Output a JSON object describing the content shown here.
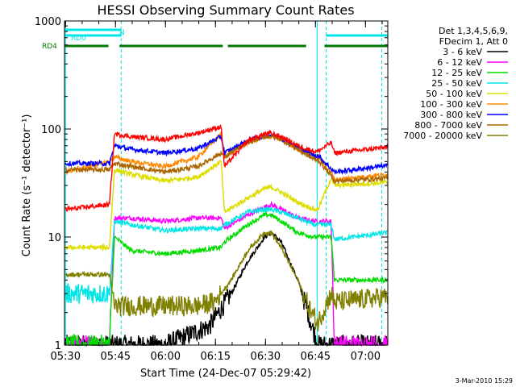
{
  "chart_data": {
    "type": "line",
    "title": "HESSI Observing Summary Count Rates",
    "xlabel": "Start Time (24-Dec-07 05:29:42)",
    "ylabel": "Count Rate (s⁻¹ detector⁻¹)",
    "x_unit": "minutes after 05:29:42",
    "xlim": [
      0,
      97
    ],
    "ylim": [
      1,
      1000
    ],
    "yscale": "log",
    "x_ticks": [
      {
        "t": 0.3,
        "label": "05:30"
      },
      {
        "t": 15.3,
        "label": "05:45"
      },
      {
        "t": 30.3,
        "label": "06:00"
      },
      {
        "t": 45.3,
        "label": "06:15"
      },
      {
        "t": 60.3,
        "label": "06:30"
      },
      {
        "t": 75.3,
        "label": "06:45"
      },
      {
        "t": 90.3,
        "label": "07:00"
      }
    ],
    "y_ticks": [
      {
        "v": 1,
        "label": "1"
      },
      {
        "v": 10,
        "label": "10"
      },
      {
        "v": 100,
        "label": "100"
      },
      {
        "v": 1000,
        "label": "1000"
      }
    ],
    "legend": {
      "position": "right",
      "header": [
        "Det 1,3,4,5,6,9,",
        "FDecim 1, Att 0"
      ]
    },
    "timestamp": "3-Mar-2010 15:29",
    "flags": [
      {
        "name": "N",
        "color": "#00e5e5",
        "segments": [
          [
            0,
            17
          ]
        ]
      },
      {
        "name": "RD0",
        "color": "#00e5e5",
        "segments": [
          [
            0,
            17
          ],
          [
            78.5,
            97
          ]
        ]
      },
      {
        "name": "RD4",
        "color": "#007700",
        "segments": [
          [
            0,
            13.2
          ],
          [
            16.5,
            47.5
          ],
          [
            49,
            72.5
          ],
          [
            78,
            97
          ]
        ]
      }
    ],
    "markers": [
      {
        "t": 0.3,
        "color": "#00e5e5",
        "style": "solid"
      },
      {
        "t": 17,
        "color": "#00e5e5",
        "style": "dashed"
      },
      {
        "t": 75.8,
        "color": "#00e5e5",
        "style": "solid"
      },
      {
        "t": 78.5,
        "color": "#00e5e5",
        "style": "dashed"
      },
      {
        "t": 95.2,
        "color": "#00e5e5",
        "style": "dashed"
      }
    ],
    "series": [
      {
        "name": "3 - 6 keV",
        "color": "#000000",
        "points": [
          [
            0.3,
            1
          ],
          [
            13.5,
            1
          ],
          [
            15,
            1
          ],
          [
            30,
            1
          ],
          [
            43.5,
            1.5
          ],
          [
            50,
            3
          ],
          [
            55,
            6
          ],
          [
            60,
            10
          ],
          [
            62,
            11
          ],
          [
            65,
            9
          ],
          [
            70,
            4
          ],
          [
            74,
            1.6
          ],
          [
            76,
            1
          ],
          [
            97,
            1
          ]
        ]
      },
      {
        "name": "6 - 12 keV",
        "color": "#ff00ff",
        "points": [
          [
            0.3,
            1
          ],
          [
            13.5,
            1
          ],
          [
            15,
            15
          ],
          [
            20,
            15
          ],
          [
            30,
            14
          ],
          [
            40,
            15
          ],
          [
            47,
            15
          ],
          [
            48,
            12
          ],
          [
            55,
            16
          ],
          [
            60,
            19
          ],
          [
            62,
            20
          ],
          [
            65,
            18
          ],
          [
            70,
            15
          ],
          [
            75,
            14
          ],
          [
            76,
            14
          ],
          [
            80,
            14
          ],
          [
            81,
            1
          ],
          [
            97,
            1
          ]
        ]
      },
      {
        "name": "12 - 25 keV",
        "color": "#00dd00",
        "points": [
          [
            0.3,
            1
          ],
          [
            13.5,
            1
          ],
          [
            15,
            10
          ],
          [
            20,
            7.5
          ],
          [
            30,
            7
          ],
          [
            40,
            7.5
          ],
          [
            47,
            8
          ],
          [
            48,
            9
          ],
          [
            55,
            13
          ],
          [
            60,
            16
          ],
          [
            62,
            16
          ],
          [
            65,
            14
          ],
          [
            70,
            11
          ],
          [
            75,
            10
          ],
          [
            76,
            10
          ],
          [
            80,
            10
          ],
          [
            81,
            4
          ],
          [
            97,
            4
          ]
        ]
      },
      {
        "name": "25 - 50 keV",
        "color": "#00e5e5",
        "points": [
          [
            0.3,
            3
          ],
          [
            13.5,
            3
          ],
          [
            15,
            14
          ],
          [
            20,
            13
          ],
          [
            30,
            11.5
          ],
          [
            40,
            12
          ],
          [
            47,
            12
          ],
          [
            48,
            13
          ],
          [
            55,
            17
          ],
          [
            60,
            18
          ],
          [
            62,
            18
          ],
          [
            65,
            17
          ],
          [
            70,
            15
          ],
          [
            75,
            13
          ],
          [
            76,
            13
          ],
          [
            80,
            13
          ],
          [
            81,
            9.5
          ],
          [
            97,
            11
          ]
        ]
      },
      {
        "name": "50 - 100 keV",
        "color": "#dddd00",
        "points": [
          [
            0.3,
            8
          ],
          [
            13.5,
            8
          ],
          [
            15,
            42
          ],
          [
            20,
            38
          ],
          [
            30,
            33
          ],
          [
            40,
            36
          ],
          [
            47,
            50
          ],
          [
            48,
            17
          ],
          [
            55,
            23
          ],
          [
            60,
            28
          ],
          [
            62,
            29
          ],
          [
            65,
            26
          ],
          [
            70,
            21
          ],
          [
            75,
            18
          ],
          [
            76,
            18
          ],
          [
            80,
            35
          ],
          [
            81,
            30
          ],
          [
            97,
            32
          ]
        ]
      },
      {
        "name": "100 - 300 keV",
        "color": "#ff8800",
        "points": [
          [
            0.3,
            40
          ],
          [
            13.5,
            50
          ],
          [
            15,
            55
          ],
          [
            20,
            50
          ],
          [
            30,
            45
          ],
          [
            40,
            55
          ],
          [
            47,
            90
          ],
          [
            48,
            55
          ],
          [
            55,
            75
          ],
          [
            60,
            85
          ],
          [
            62,
            86
          ],
          [
            65,
            80
          ],
          [
            70,
            65
          ],
          [
            75,
            55
          ],
          [
            76,
            55
          ],
          [
            80,
            40
          ],
          [
            81,
            34
          ],
          [
            97,
            38
          ]
        ]
      },
      {
        "name": "300 - 800 keV",
        "color": "#0000ff",
        "points": [
          [
            0.3,
            48
          ],
          [
            13.5,
            48
          ],
          [
            15,
            70
          ],
          [
            20,
            65
          ],
          [
            30,
            60
          ],
          [
            40,
            66
          ],
          [
            47,
            85
          ],
          [
            48,
            60
          ],
          [
            55,
            78
          ],
          [
            60,
            87
          ],
          [
            62,
            88
          ],
          [
            65,
            82
          ],
          [
            70,
            68
          ],
          [
            75,
            57
          ],
          [
            76,
            57
          ],
          [
            80,
            43
          ],
          [
            81,
            40
          ],
          [
            97,
            46
          ]
        ]
      },
      {
        "name": "800 - 7000 keV",
        "color": "#aa6600",
        "points": [
          [
            0.3,
            42
          ],
          [
            13.5,
            42
          ],
          [
            15,
            48
          ],
          [
            20,
            45
          ],
          [
            30,
            40
          ],
          [
            40,
            45
          ],
          [
            47,
            60
          ],
          [
            48,
            55
          ],
          [
            55,
            75
          ],
          [
            60,
            85
          ],
          [
            62,
            86
          ],
          [
            65,
            80
          ],
          [
            70,
            65
          ],
          [
            75,
            52
          ],
          [
            76,
            52
          ],
          [
            80,
            37
          ],
          [
            81,
            33
          ],
          [
            97,
            35
          ]
        ]
      },
      {
        "name": "7000 - 20000 keV",
        "color": "#808000",
        "points": [
          [
            0.3,
            4.5
          ],
          [
            13.5,
            4.5
          ],
          [
            15,
            2.3
          ],
          [
            20,
            2.3
          ],
          [
            30,
            2.3
          ],
          [
            40,
            2.3
          ],
          [
            45,
            2.5
          ],
          [
            50,
            4
          ],
          [
            55,
            7.5
          ],
          [
            60,
            11
          ],
          [
            62,
            11
          ],
          [
            65,
            8
          ],
          [
            70,
            4
          ],
          [
            74,
            2
          ],
          [
            76,
            1.6
          ],
          [
            80,
            3
          ],
          [
            81,
            2.5
          ],
          [
            97,
            2.8
          ]
        ]
      },
      {
        "name": "",
        "color": "#ff0000",
        "points": [
          [
            0.3,
            18
          ],
          [
            13.5,
            20
          ],
          [
            15,
            90
          ],
          [
            20,
            85
          ],
          [
            30,
            80
          ],
          [
            40,
            92
          ],
          [
            47,
            105
          ],
          [
            48,
            45
          ],
          [
            55,
            78
          ],
          [
            60,
            90
          ],
          [
            62,
            91
          ],
          [
            65,
            85
          ],
          [
            70,
            70
          ],
          [
            75,
            62
          ],
          [
            76,
            62
          ],
          [
            80,
            75
          ],
          [
            81,
            60
          ],
          [
            97,
            68
          ]
        ]
      }
    ]
  }
}
